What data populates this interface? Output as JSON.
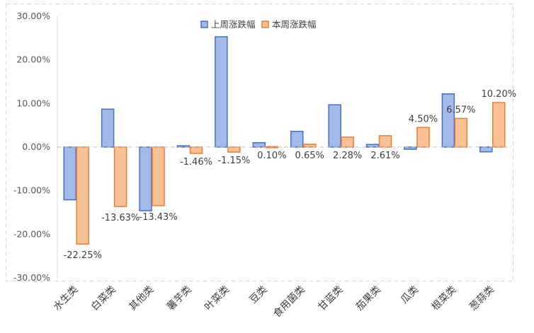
{
  "chart_data": {
    "type": "bar",
    "categories": [
      "水生类",
      "白菜类",
      "其他类",
      "薯芋类",
      "叶菜类",
      "豆类",
      "食用菌类",
      "甘蓝类",
      "茄果类",
      "瓜类",
      "根菜类",
      "葱蒜类"
    ],
    "series": [
      {
        "name": "上周涨跌幅",
        "values": [
          -12.1,
          8.7,
          -14.6,
          0.3,
          25.3,
          1.0,
          3.6,
          9.7,
          0.6,
          -0.5,
          12.2,
          -1.1
        ],
        "fill": "#a3b9e8",
        "stroke": "#4472c4"
      },
      {
        "name": "本周涨跌幅",
        "values": [
          -22.25,
          -13.63,
          -13.43,
          -1.46,
          -1.15,
          0.1,
          0.65,
          2.28,
          2.61,
          4.5,
          6.57,
          10.2
        ],
        "fill": "#f8c196",
        "stroke": "#ed7d31"
      }
    ],
    "data_labels": [
      "-22.25%",
      "-13.63%",
      "-13.43%",
      "-1.46%",
      "-1.15%",
      "0.10%",
      "0.65%",
      "2.28%",
      "2.61%",
      "4.50%",
      "6.57%",
      "10.20%"
    ],
    "y_ticks": [
      30,
      20,
      10,
      0,
      -10,
      -20,
      -30
    ],
    "y_tick_labels": [
      "30.00%",
      "20.00%",
      "10.00%",
      "0.00%",
      "-10.00%",
      "-20.00%",
      "-30.00%"
    ],
    "ylim": [
      -30,
      30
    ],
    "legend_position": "top-center",
    "grid": false,
    "zero_line_style": "dashed",
    "frame_style": "dashed"
  }
}
